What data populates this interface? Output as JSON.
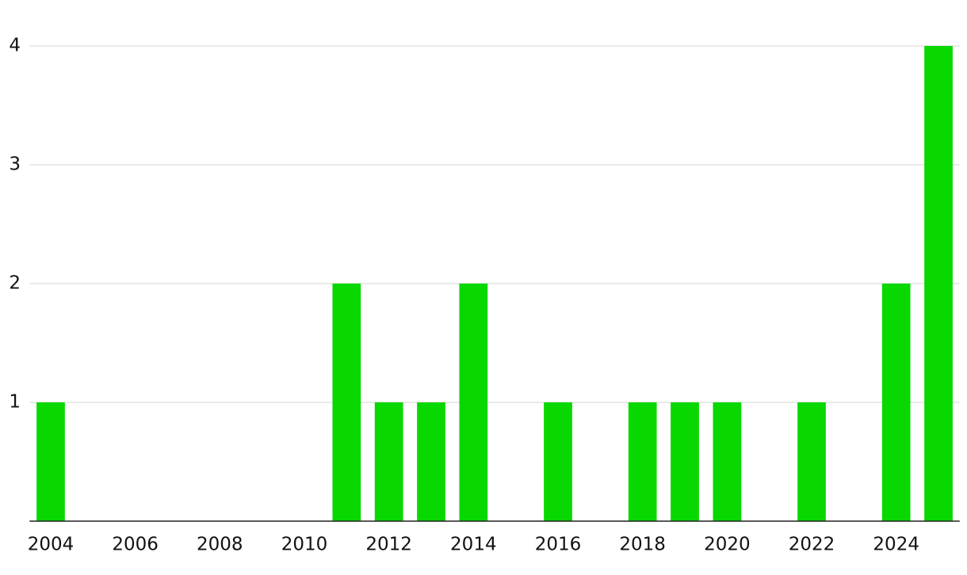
{
  "chart_data": {
    "type": "bar",
    "categories": [
      "2004",
      null,
      "2006",
      null,
      "2008",
      null,
      "2010",
      null,
      "2012",
      null,
      "2014",
      null,
      "2016",
      null,
      "2018",
      null,
      "2020",
      null,
      "2022",
      null,
      "2024",
      null
    ],
    "values": [
      1,
      0,
      0,
      0,
      0,
      0,
      0,
      2,
      1,
      1,
      2,
      0,
      1,
      0,
      1,
      1,
      1,
      0,
      1,
      0,
      2,
      4
    ],
    "color": "#08d800",
    "ylim": [
      0,
      4
    ],
    "yticks": [
      1,
      2,
      3,
      4
    ],
    "grid": true
  }
}
